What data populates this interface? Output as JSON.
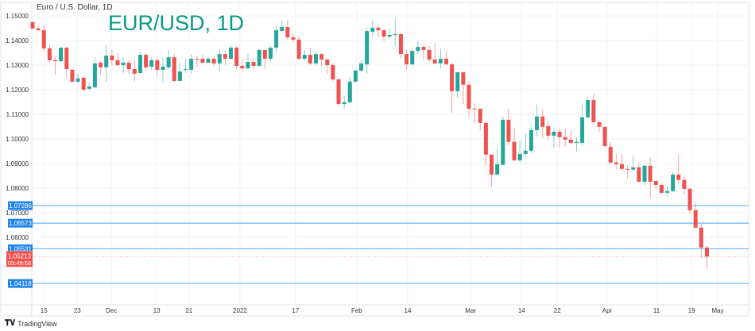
{
  "header": {
    "symbol_description": "Euro / U.S. Dollar, 1D",
    "annotation": "EUR/USD, 1D"
  },
  "footer": {
    "brand": "TradingView",
    "brand_logo": "TV"
  },
  "colors": {
    "up": "#26a69a",
    "down": "#ef5350",
    "level_line": "#64b5f6",
    "level_label": "#2186eb",
    "price_label": "#f05350",
    "grid": "#f0f3fa"
  },
  "chart_data": {
    "type": "candlestick",
    "title": "EUR/USD, 1D",
    "ylim": [
      1.0322,
      1.1565
    ],
    "y_ticks": [
      "1.15000",
      "1.14000",
      "1.13000",
      "1.12000",
      "1.11000",
      "1.10000",
      "1.09000",
      "1.08000",
      "1.07000",
      "1.06000"
    ],
    "x_ticks": [
      {
        "label": "15",
        "pos": 2
      },
      {
        "label": "23",
        "pos": 7.9
      },
      {
        "label": "Dec",
        "pos": 13.9
      },
      {
        "label": "13",
        "pos": 21.9
      },
      {
        "label": "21",
        "pos": 27.6
      },
      {
        "label": "2022",
        "pos": 36.6
      },
      {
        "label": "17",
        "pos": 46.4
      },
      {
        "label": "Feb",
        "pos": 57.2
      },
      {
        "label": "14",
        "pos": 66.2
      },
      {
        "label": "Mar",
        "pos": 77.3
      },
      {
        "label": "14",
        "pos": 86.3
      },
      {
        "label": "22",
        "pos": 92.6
      },
      {
        "label": "Apr",
        "pos": 101.4
      },
      {
        "label": "11",
        "pos": 110.1
      },
      {
        "label": "19",
        "pos": 116.3
      },
      {
        "label": "May",
        "pos": 120.9
      }
    ],
    "ohlc": [
      [
        1.1475,
        1.1478,
        1.1446,
        1.1449
      ],
      [
        1.1449,
        1.1458,
        1.1439,
        1.1442
      ],
      [
        1.1442,
        1.1465,
        1.1358,
        1.1368
      ],
      [
        1.1368,
        1.1384,
        1.131,
        1.132
      ],
      [
        1.132,
        1.1336,
        1.1262,
        1.1316
      ],
      [
        1.1316,
        1.1374,
        1.1313,
        1.1371
      ],
      [
        1.1371,
        1.1374,
        1.1252,
        1.1284
      ],
      [
        1.1281,
        1.1284,
        1.1226,
        1.1233
      ],
      [
        1.1233,
        1.1265,
        1.1226,
        1.1246
      ],
      [
        1.1249,
        1.1252,
        1.1194,
        1.12
      ],
      [
        1.1204,
        1.123,
        1.12,
        1.1213
      ],
      [
        1.121,
        1.1332,
        1.1207,
        1.1307
      ],
      [
        1.131,
        1.1316,
        1.1262,
        1.1291
      ],
      [
        1.1291,
        1.1381,
        1.1233,
        1.1339
      ],
      [
        1.1339,
        1.1362,
        1.13,
        1.132
      ],
      [
        1.132,
        1.1349,
        1.1294,
        1.13
      ],
      [
        1.13,
        1.1332,
        1.1268,
        1.131
      ],
      [
        1.131,
        1.132,
        1.1265,
        1.1284
      ],
      [
        1.1284,
        1.1323,
        1.1233,
        1.1265
      ],
      [
        1.1268,
        1.1355,
        1.1265,
        1.1342
      ],
      [
        1.1342,
        1.1349,
        1.1274,
        1.1291
      ],
      [
        1.1294,
        1.1332,
        1.1281,
        1.132
      ],
      [
        1.132,
        1.1329,
        1.1258,
        1.1281
      ],
      [
        1.1281,
        1.1329,
        1.1226,
        1.1294
      ],
      [
        1.1291,
        1.1362,
        1.1284,
        1.1332
      ],
      [
        1.1332,
        1.1345,
        1.1233,
        1.1236
      ],
      [
        1.1236,
        1.1307,
        1.1233,
        1.1274
      ],
      [
        1.1281,
        1.1323,
        1.1268,
        1.1284
      ],
      [
        1.1281,
        1.1345,
        1.1265,
        1.1326
      ],
      [
        1.1326,
        1.1339,
        1.1294,
        1.1323
      ],
      [
        1.1326,
        1.1342,
        1.1303,
        1.131
      ],
      [
        1.131,
        1.1332,
        1.1307,
        1.1326
      ],
      [
        1.1326,
        1.1332,
        1.1297,
        1.1307
      ],
      [
        1.1307,
        1.1365,
        1.1274,
        1.1345
      ],
      [
        1.1345,
        1.1358,
        1.13,
        1.1326
      ],
      [
        1.1326,
        1.1384,
        1.132,
        1.1371
      ],
      [
        1.1371,
        1.1378,
        1.1281,
        1.1297
      ],
      [
        1.1297,
        1.1323,
        1.1274,
        1.1287
      ],
      [
        1.1287,
        1.1345,
        1.1284,
        1.1313
      ],
      [
        1.1313,
        1.1323,
        1.1284,
        1.1297
      ],
      [
        1.1297,
        1.1365,
        1.1294,
        1.1362
      ],
      [
        1.1362,
        1.1362,
        1.1284,
        1.1326
      ],
      [
        1.1326,
        1.1378,
        1.1316,
        1.1371
      ],
      [
        1.1371,
        1.1458,
        1.1355,
        1.1442
      ],
      [
        1.1439,
        1.1484,
        1.1436,
        1.1455
      ],
      [
        1.1455,
        1.1484,
        1.1404,
        1.1413
      ],
      [
        1.1413,
        1.1429,
        1.1394,
        1.1404
      ],
      [
        1.1404,
        1.142,
        1.132,
        1.1326
      ],
      [
        1.1326,
        1.1362,
        1.132,
        1.1342
      ],
      [
        1.1342,
        1.1368,
        1.13,
        1.1307
      ],
      [
        1.1307,
        1.1352,
        1.13,
        1.1345
      ],
      [
        1.1345,
        1.1349,
        1.1294,
        1.1323
      ],
      [
        1.1323,
        1.1326,
        1.1265,
        1.13
      ],
      [
        1.13,
        1.1307,
        1.1236,
        1.1242
      ],
      [
        1.1242,
        1.1246,
        1.1136,
        1.1142
      ],
      [
        1.1142,
        1.1175,
        1.1123,
        1.1149
      ],
      [
        1.1149,
        1.1252,
        1.1145,
        1.1233
      ],
      [
        1.1233,
        1.1281,
        1.123,
        1.1278
      ],
      [
        1.1278,
        1.132,
        1.1271,
        1.1307
      ],
      [
        1.1303,
        1.1452,
        1.1268,
        1.1439
      ],
      [
        1.1436,
        1.1484,
        1.1413,
        1.1452
      ],
      [
        1.1452,
        1.1465,
        1.1413,
        1.1442
      ],
      [
        1.1442,
        1.1449,
        1.1397,
        1.1416
      ],
      [
        1.1416,
        1.1449,
        1.1404,
        1.1423
      ],
      [
        1.1423,
        1.1494,
        1.1378,
        1.1426
      ],
      [
        1.1426,
        1.1433,
        1.1329,
        1.1345
      ],
      [
        1.1345,
        1.1362,
        1.1281,
        1.1303
      ],
      [
        1.1303,
        1.1365,
        1.13,
        1.1358
      ],
      [
        1.1358,
        1.1397,
        1.1345,
        1.1374
      ],
      [
        1.1374,
        1.1384,
        1.1323,
        1.1362
      ],
      [
        1.1362,
        1.1378,
        1.1313,
        1.1323
      ],
      [
        1.1323,
        1.1391,
        1.1304,
        1.1307
      ],
      [
        1.1307,
        1.1368,
        1.1287,
        1.1326
      ],
      [
        1.1326,
        1.1358,
        1.13,
        1.1303
      ],
      [
        1.1303,
        1.131,
        1.1107,
        1.1194
      ],
      [
        1.1194,
        1.1274,
        1.1168,
        1.1271
      ],
      [
        1.1271,
        1.1274,
        1.1142,
        1.122
      ],
      [
        1.122,
        1.1233,
        1.1091,
        1.1123
      ],
      [
        1.1123,
        1.1145,
        1.1059,
        1.112
      ],
      [
        1.1123,
        1.1123,
        1.1033,
        1.1065
      ],
      [
        1.1065,
        1.1068,
        1.0888,
        1.0936
      ],
      [
        1.0936,
        1.0936,
        1.0807,
        1.0855
      ],
      [
        1.0855,
        1.0958,
        1.0852,
        1.0897
      ],
      [
        1.0894,
        1.1091,
        1.0894,
        1.1078
      ],
      [
        1.1078,
        1.1123,
        1.0975,
        1.0988
      ],
      [
        1.0988,
        1.1046,
        1.0907,
        1.0913
      ],
      [
        1.0913,
        1.0994,
        1.0904,
        1.0939
      ],
      [
        1.0939,
        1.102,
        1.0929,
        1.0952
      ],
      [
        1.0952,
        1.1049,
        1.0942,
        1.1036
      ],
      [
        1.1036,
        1.1139,
        1.101,
        1.1091
      ],
      [
        1.1091,
        1.112,
        1.1004,
        1.1049
      ],
      [
        1.1052,
        1.1071,
        1.0994,
        1.1013
      ],
      [
        1.1013,
        1.1046,
        1.0962,
        1.1029
      ],
      [
        1.1029,
        1.1042,
        1.0965,
        1.1007
      ],
      [
        1.1007,
        1.1039,
        1.0968,
        1.0997
      ],
      [
        1.0997,
        1.1039,
        1.0978,
        1.0984
      ],
      [
        1.0984,
        1.1007,
        1.0949,
        1.0988
      ],
      [
        1.0984,
        1.1139,
        1.0971,
        1.1088
      ],
      [
        1.1088,
        1.1171,
        1.1081,
        1.1158
      ],
      [
        1.1158,
        1.1184,
        1.1059,
        1.1068
      ],
      [
        1.1068,
        1.1075,
        1.1029,
        1.1049
      ],
      [
        1.1049,
        1.1052,
        1.0962,
        1.0971
      ],
      [
        1.0968,
        1.0988,
        1.0897,
        1.0904
      ],
      [
        1.0904,
        1.0939,
        1.0875,
        1.0897
      ],
      [
        1.0897,
        1.0939,
        1.0868,
        1.0878
      ],
      [
        1.0878,
        1.0894,
        1.0836,
        1.0875
      ],
      [
        1.0875,
        1.0933,
        1.0871,
        1.0884
      ],
      [
        1.0884,
        1.0904,
        1.0823,
        1.0826
      ],
      [
        1.0826,
        1.0894,
        1.081,
        1.0891
      ],
      [
        1.0891,
        1.0923,
        1.0758,
        1.0826
      ],
      [
        1.0829,
        1.0829,
        1.0797,
        1.0813
      ],
      [
        1.0813,
        1.082,
        1.0775,
        1.0781
      ],
      [
        1.0781,
        1.0807,
        1.0765,
        1.0788
      ],
      [
        1.0788,
        1.0865,
        1.0784,
        1.0855
      ],
      [
        1.0855,
        1.0936,
        1.0816,
        1.0833
      ],
      [
        1.0833,
        1.0849,
        1.0771,
        1.0797
      ],
      [
        1.0797,
        1.08,
        1.0697,
        1.071
      ],
      [
        1.071,
        1.0739,
        1.0636,
        1.0639
      ],
      [
        1.0639,
        1.0655,
        1.0517,
        1.0558
      ],
      [
        1.0558,
        1.0565,
        1.0471,
        1.05213
      ]
    ],
    "levels": [
      {
        "value": 1.07286,
        "label": "1.07286"
      },
      {
        "value": 1.06573,
        "label": "1.06573"
      },
      {
        "value": 1.05531,
        "label": "1.05531"
      },
      {
        "value": 1.04118,
        "label": "1.04118"
      }
    ],
    "last_price": {
      "value": 1.05213,
      "label": "1.05213",
      "countdown": "05:49:58"
    }
  }
}
